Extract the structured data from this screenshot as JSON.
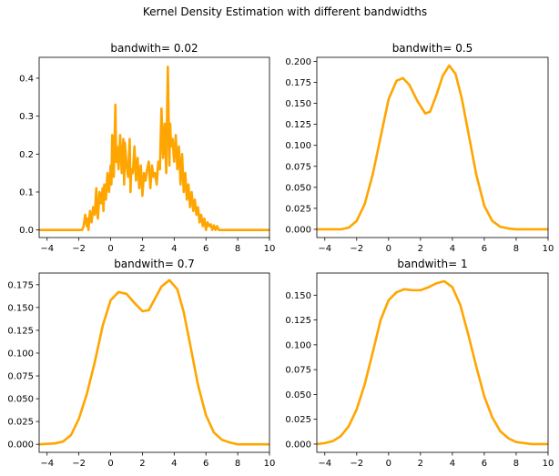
{
  "figure": {
    "suptitle": "Kernel Density Estimation with different bandwidths",
    "line_color": "#FFA500"
  },
  "chart_data": [
    {
      "type": "line",
      "title": "bandwith= 0.02",
      "xlim": [
        -4.5,
        10
      ],
      "ylim": [
        -0.02,
        0.455
      ],
      "xticks": [
        -4,
        -2,
        0,
        2,
        4,
        6,
        8,
        10
      ],
      "xtick_labels": [
        "−4",
        "−2",
        "0",
        "2",
        "4",
        "6",
        "8",
        "10"
      ],
      "yticks": [
        0.0,
        0.1,
        0.2,
        0.3,
        0.4
      ],
      "ytick_labels": [
        "0.0",
        "0.1",
        "0.2",
        "0.3",
        "0.4"
      ],
      "series": [
        {
          "x": [
            -4.5,
            -1.8,
            -1.7,
            -1.6,
            -1.5,
            -1.45,
            -1.4,
            -1.3,
            -1.2,
            -1.1,
            -1.0,
            -0.9,
            -0.85,
            -0.8,
            -0.7,
            -0.6,
            -0.5,
            -0.45,
            -0.4,
            -0.3,
            -0.2,
            -0.1,
            0.0,
            0.05,
            0.1,
            0.2,
            0.3,
            0.35,
            0.4,
            0.5,
            0.6,
            0.7,
            0.8,
            0.85,
            0.9,
            1.0,
            1.1,
            1.2,
            1.25,
            1.3,
            1.4,
            1.5,
            1.6,
            1.7,
            1.8,
            1.9,
            2.0,
            2.1,
            2.2,
            2.3,
            2.4,
            2.5,
            2.6,
            2.7,
            2.8,
            2.9,
            3.0,
            3.1,
            3.2,
            3.3,
            3.4,
            3.5,
            3.6,
            3.7,
            3.75,
            3.8,
            3.9,
            4.0,
            4.1,
            4.2,
            4.3,
            4.4,
            4.5,
            4.6,
            4.7,
            4.8,
            4.9,
            5.0,
            5.1,
            5.2,
            5.3,
            5.4,
            5.5,
            5.6,
            5.7,
            5.8,
            5.9,
            6.0,
            6.1,
            6.2,
            6.3,
            6.4,
            6.5,
            6.6,
            6.7,
            6.8,
            10.0
          ],
          "y": [
            0.0,
            0.0,
            0.01,
            0.04,
            0.01,
            0.03,
            0.0,
            0.05,
            0.02,
            0.06,
            0.04,
            0.11,
            0.05,
            0.03,
            0.1,
            0.07,
            0.11,
            0.05,
            0.12,
            0.08,
            0.15,
            0.1,
            0.17,
            0.12,
            0.25,
            0.14,
            0.33,
            0.18,
            0.22,
            0.16,
            0.25,
            0.15,
            0.24,
            0.12,
            0.23,
            0.17,
            0.14,
            0.24,
            0.1,
            0.16,
            0.15,
            0.22,
            0.13,
            0.19,
            0.11,
            0.17,
            0.09,
            0.15,
            0.13,
            0.16,
            0.18,
            0.11,
            0.17,
            0.14,
            0.15,
            0.12,
            0.18,
            0.16,
            0.32,
            0.19,
            0.28,
            0.15,
            0.43,
            0.17,
            0.28,
            0.22,
            0.24,
            0.18,
            0.25,
            0.16,
            0.22,
            0.12,
            0.2,
            0.1,
            0.15,
            0.08,
            0.12,
            0.06,
            0.1,
            0.05,
            0.08,
            0.04,
            0.06,
            0.02,
            0.04,
            0.01,
            0.03,
            0.0,
            0.02,
            0.01,
            0.015,
            0.0,
            0.012,
            0.0,
            0.01,
            0.0,
            0.0
          ]
        }
      ]
    },
    {
      "type": "line",
      "title": "bandwith= 0.5",
      "xlim": [
        -4.5,
        10
      ],
      "ylim": [
        -0.0098,
        0.2048
      ],
      "xticks": [
        -4,
        -2,
        0,
        2,
        4,
        6,
        8,
        10
      ],
      "xtick_labels": [
        "−4",
        "−2",
        "0",
        "2",
        "4",
        "6",
        "8",
        "10"
      ],
      "yticks": [
        0.0,
        0.025,
        0.05,
        0.075,
        0.1,
        0.125,
        0.15,
        0.175,
        0.2
      ],
      "ytick_labels": [
        "0.000",
        "0.025",
        "0.050",
        "0.075",
        "0.100",
        "0.125",
        "0.150",
        "0.175",
        "0.200"
      ],
      "series": [
        {
          "x": [
            -4.5,
            -3.0,
            -2.5,
            -2.0,
            -1.5,
            -1.0,
            -0.5,
            0.0,
            0.5,
            0.9,
            1.3,
            1.8,
            2.3,
            2.6,
            3.0,
            3.4,
            3.8,
            4.2,
            4.6,
            5.0,
            5.5,
            6.0,
            6.5,
            7.0,
            7.5,
            8.0,
            10.0
          ],
          "y": [
            0.0,
            0.0,
            0.002,
            0.01,
            0.03,
            0.065,
            0.11,
            0.155,
            0.177,
            0.18,
            0.172,
            0.153,
            0.138,
            0.14,
            0.16,
            0.183,
            0.195,
            0.185,
            0.155,
            0.115,
            0.065,
            0.028,
            0.01,
            0.003,
            0.001,
            0.0,
            0.0
          ]
        }
      ]
    },
    {
      "type": "line",
      "title": "bandwith= 0.7",
      "xlim": [
        -4.5,
        10
      ],
      "ylim": [
        -0.0088,
        0.1878
      ],
      "xticks": [
        -4,
        -2,
        0,
        2,
        4,
        6,
        8,
        10
      ],
      "xtick_labels": [
        "−4",
        "−2",
        "0",
        "2",
        "4",
        "6",
        "8",
        "10"
      ],
      "yticks": [
        0.0,
        0.025,
        0.05,
        0.075,
        0.1,
        0.125,
        0.15,
        0.175
      ],
      "ytick_labels": [
        "0.000",
        "0.025",
        "0.050",
        "0.075",
        "0.100",
        "0.125",
        "0.150",
        "0.175"
      ],
      "series": [
        {
          "x": [
            -4.5,
            -3.5,
            -3.0,
            -2.5,
            -2.0,
            -1.5,
            -1.0,
            -0.5,
            0.0,
            0.5,
            1.0,
            1.5,
            2.0,
            2.4,
            2.8,
            3.2,
            3.7,
            4.2,
            4.6,
            5.0,
            5.5,
            6.0,
            6.5,
            7.0,
            7.5,
            8.0,
            10.0
          ],
          "y": [
            0.0,
            0.001,
            0.003,
            0.01,
            0.028,
            0.055,
            0.09,
            0.13,
            0.158,
            0.167,
            0.165,
            0.155,
            0.146,
            0.147,
            0.16,
            0.173,
            0.18,
            0.17,
            0.145,
            0.11,
            0.065,
            0.032,
            0.013,
            0.005,
            0.002,
            0.0,
            0.0
          ]
        }
      ]
    },
    {
      "type": "line",
      "title": "bandwith= 1",
      "xlim": [
        -4.5,
        10
      ],
      "ylim": [
        -0.0083,
        0.1723
      ],
      "xticks": [
        -4,
        -2,
        0,
        2,
        4,
        6,
        8,
        10
      ],
      "xtick_labels": [
        "−4",
        "−2",
        "0",
        "2",
        "4",
        "6",
        "8",
        "10"
      ],
      "yticks": [
        0.0,
        0.025,
        0.05,
        0.075,
        0.1,
        0.125,
        0.15
      ],
      "ytick_labels": [
        "0.000",
        "0.025",
        "0.050",
        "0.075",
        "0.100",
        "0.125",
        "0.150"
      ],
      "series": [
        {
          "x": [
            -4.5,
            -4.0,
            -3.5,
            -3.0,
            -2.5,
            -2.0,
            -1.5,
            -1.0,
            -0.5,
            0.0,
            0.5,
            1.0,
            1.5,
            2.0,
            2.5,
            3.0,
            3.5,
            4.0,
            4.5,
            5.0,
            5.5,
            6.0,
            6.5,
            7.0,
            7.5,
            8.0,
            9.0,
            10.0
          ],
          "y": [
            0.0,
            0.001,
            0.003,
            0.008,
            0.018,
            0.035,
            0.06,
            0.092,
            0.125,
            0.145,
            0.153,
            0.156,
            0.155,
            0.155,
            0.158,
            0.162,
            0.164,
            0.158,
            0.14,
            0.11,
            0.078,
            0.048,
            0.027,
            0.013,
            0.006,
            0.002,
            0.0,
            0.0
          ]
        }
      ]
    }
  ]
}
